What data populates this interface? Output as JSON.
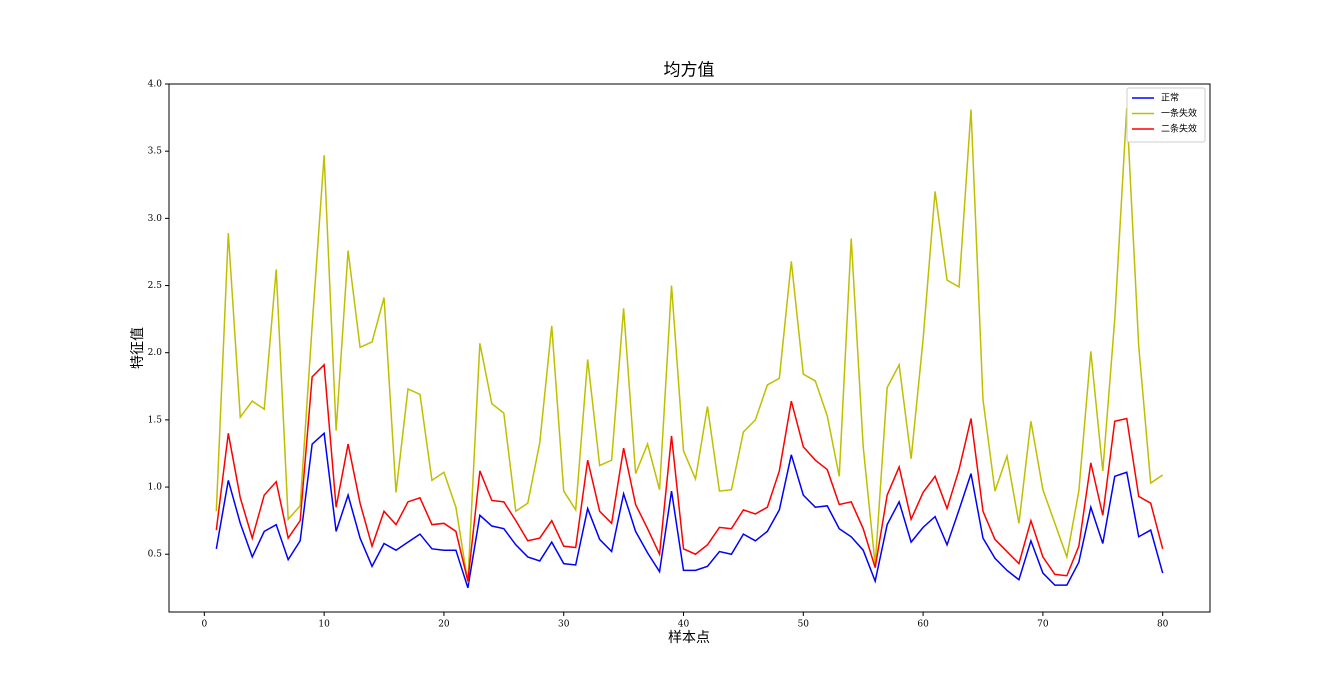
{
  "chart_data": {
    "type": "line",
    "title": "均方值",
    "xlabel": "样本点",
    "ylabel": "特征值",
    "x": [
      1,
      2,
      3,
      4,
      5,
      6,
      7,
      8,
      9,
      10,
      11,
      12,
      13,
      14,
      15,
      16,
      17,
      18,
      19,
      20,
      21,
      22,
      23,
      24,
      25,
      26,
      27,
      28,
      29,
      30,
      31,
      32,
      33,
      34,
      35,
      36,
      37,
      38,
      39,
      40,
      41,
      42,
      43,
      44,
      45,
      46,
      47,
      48,
      49,
      50,
      51,
      52,
      53,
      54,
      55,
      56,
      57,
      58,
      59,
      60,
      61,
      62,
      63,
      64,
      65,
      66,
      67,
      68,
      69,
      70,
      71,
      72,
      73,
      74,
      75,
      76,
      77,
      78,
      79,
      80
    ],
    "series": [
      {
        "name": "正常",
        "color": "#0000ff",
        "values": [
          0.54,
          1.05,
          0.73,
          0.48,
          0.67,
          0.72,
          0.46,
          0.6,
          1.32,
          1.4,
          0.67,
          0.94,
          0.62,
          0.41,
          0.58,
          0.53,
          0.59,
          0.65,
          0.54,
          0.53,
          0.53,
          0.25,
          0.79,
          0.71,
          0.69,
          0.57,
          0.48,
          0.45,
          0.59,
          0.43,
          0.42,
          0.84,
          0.61,
          0.52,
          0.95,
          0.67,
          0.51,
          0.37,
          0.97,
          0.38,
          0.38,
          0.41,
          0.52,
          0.5,
          0.65,
          0.6,
          0.67,
          0.83,
          1.24,
          0.94,
          0.85,
          0.86,
          0.69,
          0.63,
          0.53,
          0.3,
          0.72,
          0.89,
          0.59,
          0.7,
          0.78,
          0.57,
          0.83,
          1.1,
          0.62,
          0.47,
          0.38,
          0.31,
          0.6,
          0.36,
          0.27,
          0.27,
          0.44,
          0.85,
          0.58,
          1.08,
          1.11,
          0.63,
          0.68,
          0.36
        ]
      },
      {
        "name": "一条失效",
        "color": "#bfbf00",
        "values": [
          0.82,
          2.89,
          1.52,
          1.64,
          1.58,
          2.62,
          0.76,
          0.86,
          2.2,
          3.47,
          1.42,
          2.76,
          2.04,
          2.08,
          2.41,
          0.96,
          1.73,
          1.69,
          1.05,
          1.11,
          0.85,
          0.29,
          2.07,
          1.62,
          1.55,
          0.82,
          0.88,
          1.33,
          2.2,
          0.97,
          0.83,
          1.95,
          1.16,
          1.2,
          2.33,
          1.1,
          1.32,
          0.98,
          2.5,
          1.27,
          1.06,
          1.6,
          0.97,
          0.98,
          1.41,
          1.5,
          1.76,
          1.81,
          2.68,
          1.84,
          1.79,
          1.53,
          1.08,
          2.85,
          1.3,
          0.42,
          1.74,
          1.91,
          1.21,
          2.1,
          3.2,
          2.54,
          2.49,
          3.81,
          1.65,
          0.97,
          1.23,
          0.73,
          1.49,
          0.98,
          0.73,
          0.48,
          0.97,
          2.01,
          1.12,
          2.25,
          3.82,
          2.05,
          1.03,
          1.09
        ]
      },
      {
        "name": "二条失效",
        "color": "#ff0000",
        "values": [
          0.68,
          1.4,
          0.92,
          0.62,
          0.94,
          1.04,
          0.62,
          0.75,
          1.82,
          1.91,
          0.85,
          1.32,
          0.88,
          0.56,
          0.82,
          0.72,
          0.89,
          0.92,
          0.72,
          0.73,
          0.67,
          0.3,
          1.12,
          0.9,
          0.89,
          0.75,
          0.6,
          0.62,
          0.75,
          0.56,
          0.55,
          1.2,
          0.82,
          0.73,
          1.29,
          0.87,
          0.69,
          0.5,
          1.38,
          0.54,
          0.5,
          0.57,
          0.7,
          0.69,
          0.83,
          0.8,
          0.85,
          1.12,
          1.64,
          1.3,
          1.2,
          1.13,
          0.87,
          0.89,
          0.69,
          0.4,
          0.94,
          1.15,
          0.76,
          0.96,
          1.08,
          0.84,
          1.13,
          1.51,
          0.82,
          0.61,
          0.52,
          0.43,
          0.75,
          0.48,
          0.35,
          0.34,
          0.56,
          1.18,
          0.79,
          1.49,
          1.51,
          0.93,
          0.88,
          0.54
        ]
      }
    ],
    "xlim": [
      -2.95,
      83.95
    ],
    "ylim": [
      0.07,
      4.0
    ],
    "xticks": [
      0,
      10,
      20,
      30,
      40,
      50,
      60,
      70,
      80
    ],
    "yticks": [
      0.5,
      {
        "value": 1,
        "label": "1.0"
      },
      1.5,
      {
        "value": 2,
        "label": "2.0"
      },
      2.5,
      {
        "value": 3,
        "label": "3.0"
      },
      3.5,
      {
        "value": 4,
        "label": "4.0"
      }
    ],
    "legend": "upper right"
  }
}
